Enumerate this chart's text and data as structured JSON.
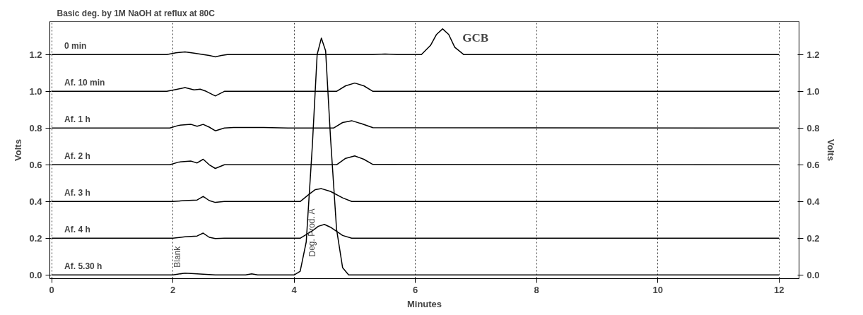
{
  "chart_data": {
    "type": "line",
    "title": "Basic deg. by 1M NaOH at reflux at 80C",
    "xlabel": "Minutes",
    "ylabel": "Volts",
    "y2label": "Volts",
    "xlim": [
      -0.03,
      12.33
    ],
    "xticks": [
      0,
      2,
      4,
      6,
      8,
      10,
      12
    ],
    "ylim": [
      -0.02,
      1.38
    ],
    "yticks": [
      {
        "value": 0,
        "label": "0.0"
      },
      0.2,
      0.4,
      0.6,
      0.8,
      {
        "value": 1,
        "label": "1.0"
      },
      1.2
    ],
    "y2lim": [
      -0.02,
      1.38
    ],
    "y2ticks": [
      {
        "value": 0,
        "label": "0.0"
      },
      0.2,
      0.4,
      0.6,
      0.8,
      {
        "value": 1,
        "label": "1.0"
      },
      1.2
    ],
    "grid": "x",
    "legend": false,
    "line_style": "solid",
    "series": [
      {
        "name": "0 min",
        "color": "#000000",
        "x": [
          0,
          1.9,
          2.05,
          2.2,
          2.35,
          2.5,
          2.6,
          2.7,
          2.8,
          2.9,
          5.3,
          5.5,
          5.7,
          6.1,
          6.25,
          6.35,
          6.45,
          6.55,
          6.65,
          6.8,
          12
        ],
        "values": [
          1.2,
          1.2,
          1.21,
          1.215,
          1.208,
          1.2,
          1.195,
          1.188,
          1.195,
          1.2,
          1.2,
          1.203,
          1.2,
          1.2,
          1.25,
          1.31,
          1.34,
          1.31,
          1.24,
          1.2,
          1.2
        ]
      },
      {
        "name": "Af. 10 min",
        "color": "#000000",
        "x": [
          0,
          1.9,
          2.05,
          2.2,
          2.35,
          2.45,
          2.55,
          2.7,
          2.85,
          4.7,
          4.85,
          5.0,
          5.15,
          5.3,
          12
        ],
        "values": [
          1.0,
          1.0,
          1.01,
          1.02,
          1.008,
          1.012,
          1.0,
          0.975,
          1.0,
          1.0,
          1.03,
          1.045,
          1.03,
          1.0,
          1.0
        ]
      },
      {
        "name": "Af. 1 h",
        "color": "#000000",
        "x": [
          0,
          1.95,
          2.1,
          2.3,
          2.4,
          2.5,
          2.6,
          2.7,
          2.85,
          3.0,
          3.5,
          3.9,
          4.65,
          4.8,
          4.95,
          5.1,
          5.3,
          12
        ],
        "values": [
          0.8,
          0.8,
          0.815,
          0.82,
          0.81,
          0.82,
          0.805,
          0.785,
          0.8,
          0.803,
          0.803,
          0.8,
          0.8,
          0.83,
          0.84,
          0.825,
          0.802,
          0.8
        ]
      },
      {
        "name": "Af. 2 h",
        "color": "#000000",
        "x": [
          0,
          1.95,
          2.1,
          2.3,
          2.4,
          2.5,
          2.6,
          2.7,
          2.85,
          4.7,
          4.85,
          5.0,
          5.15,
          5.3,
          12
        ],
        "values": [
          0.6,
          0.6,
          0.615,
          0.62,
          0.61,
          0.63,
          0.6,
          0.58,
          0.6,
          0.6,
          0.635,
          0.648,
          0.63,
          0.602,
          0.6
        ]
      },
      {
        "name": "Af. 3 h",
        "color": "#000000",
        "x": [
          0,
          2.0,
          2.2,
          2.4,
          2.5,
          2.6,
          2.7,
          2.85,
          4.1,
          4.25,
          4.35,
          4.45,
          4.6,
          4.8,
          4.95,
          12
        ],
        "values": [
          0.4,
          0.4,
          0.405,
          0.408,
          0.428,
          0.405,
          0.395,
          0.4,
          0.4,
          0.44,
          0.465,
          0.47,
          0.455,
          0.42,
          0.4,
          0.4
        ]
      },
      {
        "name": "Af. 4 h",
        "color": "#000000",
        "x": [
          0,
          2.0,
          2.2,
          2.4,
          2.5,
          2.6,
          2.7,
          2.85,
          4.1,
          4.3,
          4.4,
          4.5,
          4.6,
          4.8,
          4.95,
          12
        ],
        "values": [
          0.2,
          0.2,
          0.208,
          0.212,
          0.228,
          0.205,
          0.198,
          0.2,
          0.2,
          0.24,
          0.265,
          0.275,
          0.26,
          0.215,
          0.2,
          0.2
        ]
      },
      {
        "name": "Af. 5.30 h",
        "color": "#000000",
        "x": [
          0,
          2.0,
          2.2,
          2.4,
          2.7,
          3.2,
          3.3,
          3.4,
          4.0,
          4.1,
          4.2,
          4.3,
          4.38,
          4.45,
          4.52,
          4.6,
          4.7,
          4.8,
          4.9,
          12
        ],
        "values": [
          0,
          0,
          0.01,
          0.006,
          0,
          0,
          0.006,
          0,
          0,
          0.02,
          0.18,
          0.7,
          1.2,
          1.29,
          1.22,
          0.75,
          0.25,
          0.04,
          0,
          0
        ]
      }
    ],
    "annotations": [
      {
        "text": "GCB",
        "x": 6.45,
        "y": 1.34
      },
      {
        "text": "Blank",
        "x": 2.2,
        "y": 0.01
      },
      "Deg. Prod. A"
    ]
  }
}
